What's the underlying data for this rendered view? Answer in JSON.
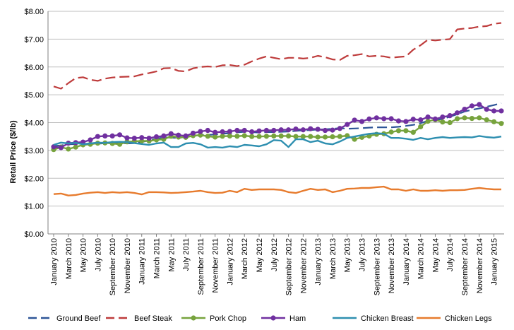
{
  "chart_data": {
    "type": "line",
    "ylabel": "Retail Price ($/lb)",
    "ylim": [
      0,
      8
    ],
    "yticks": [
      "$0.00",
      "$1.00",
      "$2.00",
      "$3.00",
      "$4.00",
      "$5.00",
      "$6.00",
      "$7.00",
      "$8.00"
    ],
    "ytick_values": [
      0,
      1,
      2,
      3,
      4,
      5,
      6,
      7,
      8
    ],
    "grid": "horizontal",
    "legend_position": "bottom",
    "x": [
      "January 2010",
      "February 2010",
      "March 2010",
      "April 2010",
      "May 2010",
      "June 2010",
      "July 2010",
      "August 2010",
      "September 2010",
      "October 2010",
      "November 2010",
      "December 2010",
      "January 2011",
      "February 2011",
      "March 2011",
      "April 2011",
      "May 2011",
      "June 2011",
      "July 2011",
      "August 2011",
      "September 2011",
      "October 2011",
      "November 2011",
      "December 2011",
      "January 2012",
      "February 2012",
      "March 2012",
      "April 2012",
      "May 2012",
      "June 2012",
      "July 2012",
      "August 2012",
      "September 2012",
      "October 2012",
      "November 2012",
      "December 2012",
      "January 2013",
      "February 2013",
      "March 2013",
      "April 2013",
      "May 2013",
      "June 2013",
      "July 2013",
      "August 2013",
      "September 2013",
      "October 2013",
      "November 2013",
      "December 2013",
      "January 2014",
      "February 2014",
      "March 2014",
      "April 2014",
      "May 2014",
      "June 2014",
      "July 2014",
      "August 2014",
      "September 2014",
      "October 2014",
      "November 2014",
      "December 2014",
      "January 2015",
      "February 2015"
    ],
    "xtick_labels": [
      "January 2010",
      "March 2010",
      "May 2010",
      "July 2010",
      "September 2010",
      "November 2010",
      "January 2011",
      "March 2011",
      "May 2011",
      "July 2011",
      "September 2011",
      "November 2011",
      "January 2012",
      "March 2012",
      "May 2012",
      "July 2012",
      "September 2012",
      "November 2012",
      "January 2013",
      "March 2013",
      "May 2013",
      "July 2013",
      "September 2013",
      "November 2013",
      "January 2014",
      "March 2014",
      "May 2014",
      "July 2014",
      "September 2014",
      "November 2014",
      "January 2015"
    ],
    "series": [
      {
        "name": "Ground Beef",
        "color": "#2E5597",
        "style": "dashed",
        "marker": "none",
        "values": [
          3.16,
          3.18,
          3.22,
          3.23,
          3.23,
          3.25,
          3.24,
          3.26,
          3.26,
          3.27,
          3.25,
          3.26,
          3.3,
          3.36,
          3.42,
          3.47,
          3.46,
          3.45,
          3.49,
          3.53,
          3.55,
          3.56,
          3.57,
          3.6,
          3.62,
          3.65,
          3.67,
          3.66,
          3.64,
          3.66,
          3.66,
          3.67,
          3.68,
          3.7,
          3.72,
          3.73,
          3.75,
          3.76,
          3.78,
          3.8,
          3.78,
          3.79,
          3.8,
          3.82,
          3.83,
          3.83,
          3.83,
          3.85,
          3.88,
          3.92,
          3.98,
          4.06,
          4.1,
          4.13,
          4.21,
          4.3,
          4.4,
          4.46,
          4.51,
          4.57,
          4.63,
          4.7
        ]
      },
      {
        "name": "Beef Steak",
        "color": "#BE3B3B",
        "style": "dashed",
        "marker": "none",
        "values": [
          5.3,
          5.22,
          5.42,
          5.6,
          5.63,
          5.54,
          5.5,
          5.58,
          5.62,
          5.64,
          5.65,
          5.66,
          5.73,
          5.78,
          5.84,
          5.95,
          5.96,
          5.86,
          5.84,
          5.95,
          6.0,
          6.02,
          6.0,
          6.06,
          6.07,
          6.03,
          6.08,
          6.2,
          6.3,
          6.38,
          6.33,
          6.28,
          6.33,
          6.33,
          6.3,
          6.33,
          6.4,
          6.35,
          6.27,
          6.25,
          6.4,
          6.42,
          6.46,
          6.38,
          6.4,
          6.38,
          6.33,
          6.36,
          6.38,
          6.62,
          6.78,
          6.98,
          6.95,
          6.98,
          7.0,
          7.35,
          7.38,
          7.4,
          7.45,
          7.47,
          7.55,
          7.58
        ]
      },
      {
        "name": "Pork Chop",
        "color": "#77A33D",
        "style": "solid",
        "marker": "circle",
        "values": [
          3.03,
          3.12,
          3.05,
          3.12,
          3.2,
          3.22,
          3.26,
          3.27,
          3.25,
          3.22,
          3.31,
          3.33,
          3.34,
          3.34,
          3.38,
          3.4,
          3.51,
          3.48,
          3.47,
          3.53,
          3.55,
          3.51,
          3.48,
          3.51,
          3.52,
          3.51,
          3.53,
          3.5,
          3.5,
          3.51,
          3.52,
          3.52,
          3.52,
          3.5,
          3.5,
          3.5,
          3.48,
          3.48,
          3.49,
          3.5,
          3.53,
          3.4,
          3.47,
          3.52,
          3.58,
          3.6,
          3.66,
          3.71,
          3.71,
          3.65,
          3.85,
          4.05,
          4.1,
          4.02,
          4.0,
          4.14,
          4.17,
          4.15,
          4.17,
          4.1,
          4.03,
          3.97
        ]
      },
      {
        "name": "Ham",
        "color": "#7030A0",
        "style": "solid",
        "marker": "circle",
        "values": [
          3.13,
          3.1,
          3.26,
          3.28,
          3.3,
          3.38,
          3.5,
          3.52,
          3.52,
          3.56,
          3.45,
          3.44,
          3.46,
          3.44,
          3.49,
          3.52,
          3.6,
          3.55,
          3.52,
          3.62,
          3.68,
          3.72,
          3.65,
          3.67,
          3.68,
          3.72,
          3.72,
          3.67,
          3.7,
          3.72,
          3.72,
          3.74,
          3.74,
          3.77,
          3.74,
          3.78,
          3.76,
          3.72,
          3.73,
          3.79,
          3.93,
          4.09,
          4.04,
          4.13,
          4.17,
          4.14,
          4.14,
          4.06,
          4.04,
          4.12,
          4.1,
          4.2,
          4.13,
          4.2,
          4.25,
          4.35,
          4.48,
          4.6,
          4.65,
          4.48,
          4.42,
          4.42
        ]
      },
      {
        "name": "Chicken Breast",
        "color": "#2E8FB0",
        "style": "solid",
        "marker": "none",
        "values": [
          3.2,
          3.28,
          3.25,
          3.27,
          3.22,
          3.25,
          3.28,
          3.27,
          3.3,
          3.31,
          3.3,
          3.26,
          3.23,
          3.2,
          3.25,
          3.28,
          3.12,
          3.12,
          3.25,
          3.27,
          3.22,
          3.1,
          3.12,
          3.1,
          3.15,
          3.12,
          3.2,
          3.18,
          3.15,
          3.22,
          3.37,
          3.35,
          3.12,
          3.4,
          3.4,
          3.3,
          3.35,
          3.25,
          3.22,
          3.32,
          3.45,
          3.5,
          3.55,
          3.6,
          3.62,
          3.6,
          3.45,
          3.45,
          3.42,
          3.38,
          3.45,
          3.4,
          3.45,
          3.48,
          3.45,
          3.47,
          3.48,
          3.47,
          3.52,
          3.48,
          3.46,
          3.5
        ]
      },
      {
        "name": "Chicken Legs",
        "color": "#E77B2D",
        "style": "solid",
        "marker": "none",
        "values": [
          1.43,
          1.45,
          1.38,
          1.4,
          1.45,
          1.48,
          1.5,
          1.47,
          1.5,
          1.48,
          1.5,
          1.47,
          1.42,
          1.5,
          1.5,
          1.49,
          1.47,
          1.48,
          1.5,
          1.52,
          1.55,
          1.5,
          1.47,
          1.48,
          1.55,
          1.5,
          1.62,
          1.58,
          1.6,
          1.6,
          1.6,
          1.58,
          1.5,
          1.47,
          1.55,
          1.62,
          1.58,
          1.6,
          1.5,
          1.55,
          1.62,
          1.63,
          1.65,
          1.65,
          1.68,
          1.7,
          1.6,
          1.6,
          1.55,
          1.6,
          1.55,
          1.55,
          1.57,
          1.55,
          1.57,
          1.57,
          1.58,
          1.62,
          1.65,
          1.62,
          1.6,
          1.6
        ]
      }
    ]
  }
}
